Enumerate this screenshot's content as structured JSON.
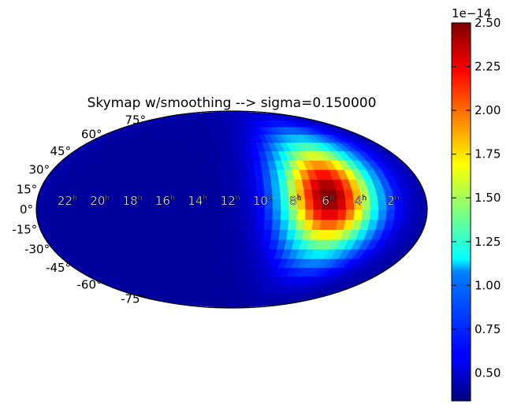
{
  "chart_data": {
    "type": "heatmap",
    "projection": "mollweide",
    "title": "Skymap w/smoothing --> sigma=0.150000",
    "colormap": "jet",
    "ra_labels": [
      "22h",
      "20h",
      "18h",
      "16h",
      "14h",
      "12h",
      "10h",
      "8h",
      "6h",
      "4h",
      "2h"
    ],
    "ra_label_text": [
      "22",
      "20",
      "18",
      "16",
      "14",
      "12",
      "10",
      "8",
      "6",
      "4",
      "2"
    ],
    "ra_label_suffix": "h",
    "dec_labels": [
      "75°",
      "60°",
      "45°",
      "30°",
      "15°",
      "0°",
      "-15°",
      "-30°",
      "-45°",
      "-60°",
      "-75°"
    ],
    "dec_values": [
      75,
      60,
      45,
      30,
      15,
      0,
      -15,
      -30,
      -45,
      -60,
      -75
    ],
    "peak": {
      "ra_hours": 6,
      "dec_deg": 10,
      "value": 2.5e-14
    },
    "background_min": 3.4e-15,
    "colorbar": {
      "min": 0.34,
      "max": 2.5,
      "exponent_label": "1e−14",
      "ticks": [
        0.5,
        0.75,
        1.0,
        1.25,
        1.5,
        1.75,
        2.0,
        2.25,
        2.5
      ],
      "tick_labels": [
        "0.50",
        "0.75",
        "1.00",
        "1.25",
        "1.50",
        "1.75",
        "2.00",
        "2.25",
        "2.50"
      ]
    }
  }
}
